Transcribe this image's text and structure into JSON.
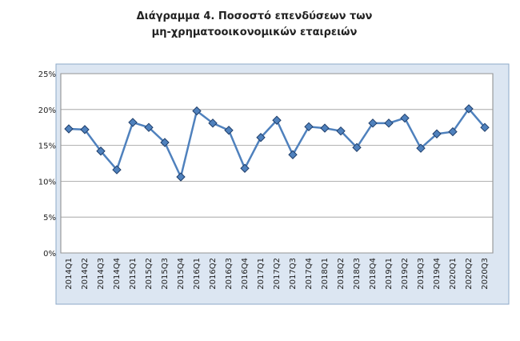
{
  "chart_data": {
    "type": "line",
    "title": [
      "Διάγραμμα 4. Ποσοστό επενδύσεων των",
      "μη-χρηματοοικονομικών εταιρειών"
    ],
    "categories": [
      "2014Q1",
      "2014Q2",
      "2014Q3",
      "2014Q4",
      "2015Q1",
      "2015Q2",
      "2015Q3",
      "2015Q4",
      "2016Q1",
      "2016Q2",
      "2016Q3",
      "2016Q4",
      "2017Q1",
      "2017Q2",
      "2017Q3",
      "2017Q4",
      "2018Q1",
      "2018Q2",
      "2018Q3",
      "2018Q4",
      "2019Q1",
      "2019Q2",
      "2019Q3",
      "2019Q4",
      "2020Q1",
      "2020Q2",
      "2020Q3"
    ],
    "values": [
      17.3,
      17.2,
      14.2,
      11.6,
      18.2,
      17.5,
      15.4,
      10.6,
      19.8,
      18.1,
      17.1,
      11.8,
      16.1,
      18.5,
      13.7,
      17.6,
      17.4,
      17.0,
      14.7,
      18.1,
      18.1,
      18.8,
      14.6,
      16.6,
      16.9,
      20.1,
      17.5
    ],
    "color": "#4f81bd",
    "marker_color": "#1f3e6a",
    "ylim": [
      0,
      25
    ],
    "yticks": [
      {
        "value": 0,
        "label": "0%"
      },
      {
        "value": 5,
        "label": "5%"
      },
      {
        "value": 10,
        "label": "10%"
      },
      {
        "value": 15,
        "label": "15%"
      },
      {
        "value": 20,
        "label": "20%"
      },
      {
        "value": 25,
        "label": "25%"
      }
    ],
    "grid": true
  }
}
